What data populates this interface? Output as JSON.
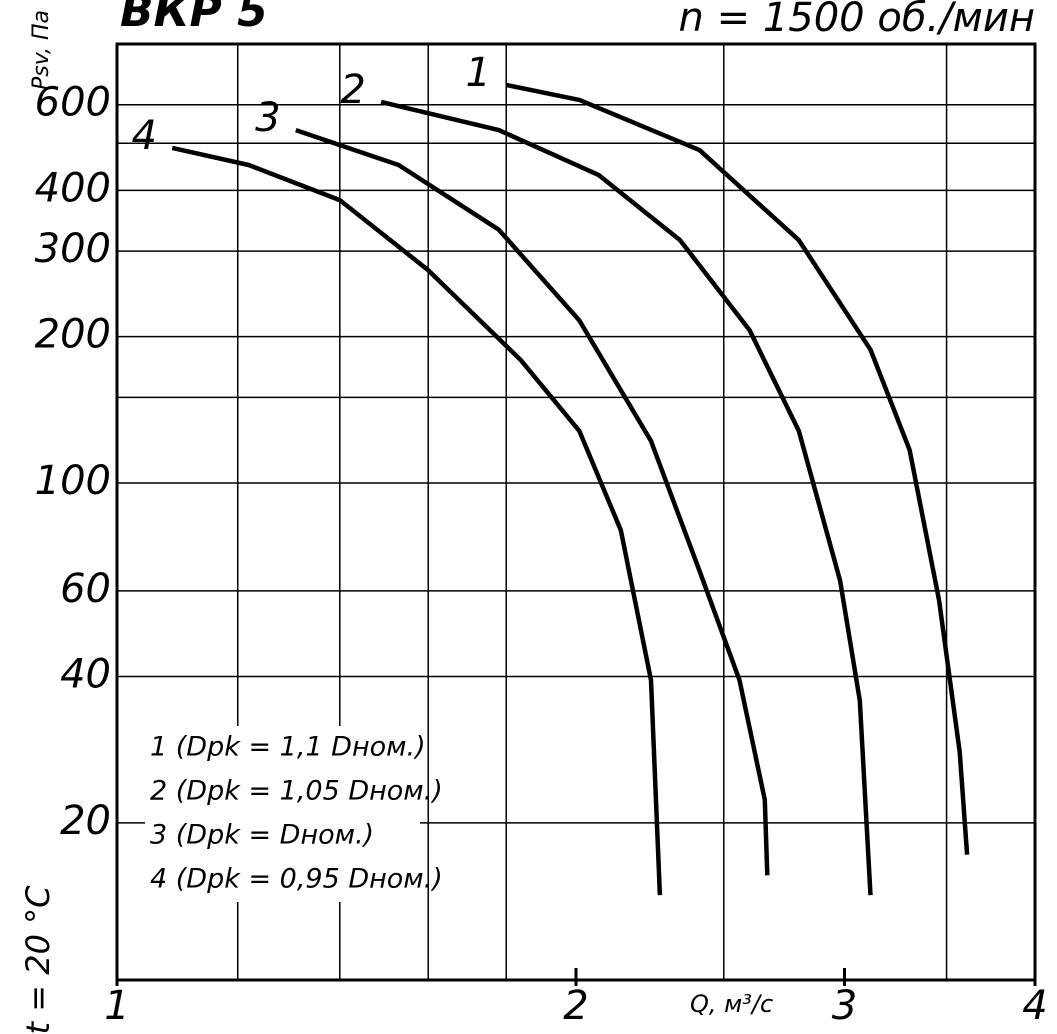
{
  "chart_data": {
    "type": "line",
    "title": "ВКР 5",
    "subtitle": "n = 1500 об./мин",
    "y_label": "Psv, Па",
    "x_label": "Q, м³/с",
    "annotation": "t = 20 °C",
    "xlog": true,
    "ylog": true,
    "grid": true,
    "color": "#000000",
    "xlim": [
      1,
      4
    ],
    "ylim": [
      9.5,
      800
    ],
    "xticks": [
      1,
      2,
      3,
      4
    ],
    "x_minor_grid": [
      1.2,
      1.4,
      1.6,
      1.8,
      2.5,
      3.5
    ],
    "yticks": [
      20,
      40,
      60,
      100,
      200,
      300,
      400,
      600
    ],
    "y_minor_grid": [
      150,
      500
    ],
    "legend": [
      "1 (Dpk = 1,1 Dном.)",
      "2 (Dpk = 1,05 Dном.)",
      "3 (Dpk = Dном.)",
      "4 (Dpk = 0,95 Dном.)"
    ],
    "series": [
      {
        "name": "1",
        "x": [
          1.8,
          2.01,
          2.41,
          2.8,
          3.12,
          3.31,
          3.46,
          3.57,
          3.61
        ],
        "values": [
          659,
          614,
          484,
          316,
          188,
          117,
          57.5,
          28,
          17.2
        ]
      },
      {
        "name": "2",
        "x": [
          1.49,
          1.78,
          2.07,
          2.34,
          2.6,
          2.8,
          2.98,
          3.07,
          3.12
        ],
        "values": [
          608,
          532,
          430,
          316,
          206,
          128,
          63,
          35.7,
          14.2
        ]
      },
      {
        "name": "3",
        "x": [
          1.31,
          1.53,
          1.78,
          2.01,
          2.24,
          2.41,
          2.56,
          2.66,
          2.67
        ],
        "values": [
          532,
          451,
          332,
          216,
          122,
          66,
          39.3,
          22.3,
          15.6
        ]
      },
      {
        "name": "4",
        "x": [
          1.087,
          1.22,
          1.4,
          1.6,
          1.84,
          2.01,
          2.14,
          2.24,
          2.27
        ],
        "values": [
          489,
          451,
          382,
          274,
          179,
          128,
          80,
          39.3,
          14.2
        ]
      }
    ]
  }
}
